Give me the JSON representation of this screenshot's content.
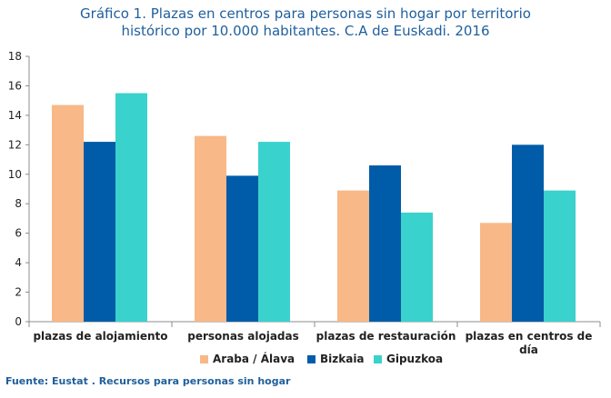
{
  "chart_data": {
    "type": "bar",
    "title_lines": [
      "Gráfico 1. Plazas en centros para personas sin hogar por territorio",
      "histórico por 10.000 habitantes. C.A de Euskadi. 2016"
    ],
    "categories": [
      [
        "plazas de alojamiento"
      ],
      [
        "personas alojadas"
      ],
      [
        "plazas de restauración"
      ],
      [
        "plazas en centros de",
        "día"
      ]
    ],
    "series": [
      {
        "name": "Araba / Álava",
        "color": "#f8b887",
        "values": [
          14.7,
          12.6,
          8.9,
          6.7
        ]
      },
      {
        "name": "Bizkaia",
        "color": "#005ca8",
        "values": [
          12.2,
          9.9,
          10.6,
          12.0
        ]
      },
      {
        "name": "Gipuzkoa",
        "color": "#3ad2cc",
        "values": [
          15.5,
          12.2,
          7.4,
          8.9
        ]
      }
    ],
    "yticks": [
      "0",
      "2",
      "4",
      "6",
      "8",
      "10",
      "12",
      "14",
      "16",
      "18"
    ],
    "ylim": [
      0,
      18
    ],
    "xlabel": "",
    "ylabel": "",
    "legend_position": "bottom",
    "grid": false
  },
  "source": "Fuente: Eustat . Recursos para personas sin hogar"
}
